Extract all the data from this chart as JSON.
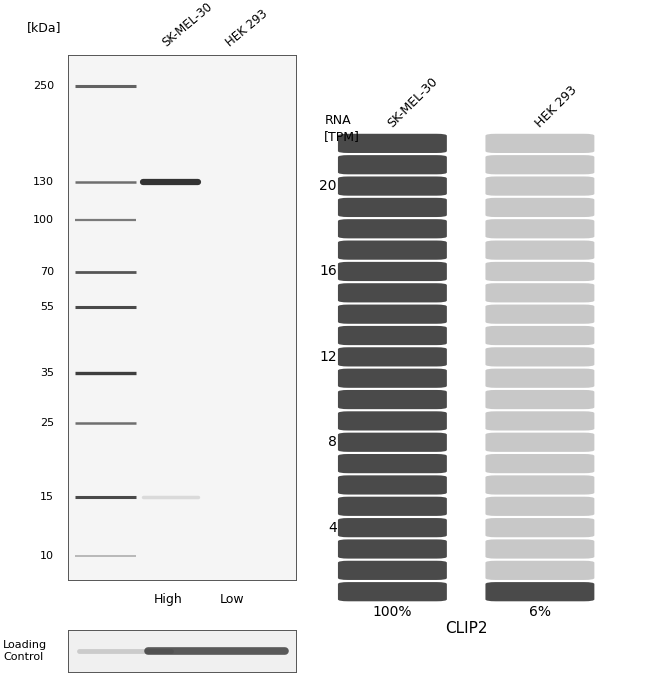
{
  "fig_width": 6.5,
  "fig_height": 6.91,
  "bg_color": "#ffffff",
  "wb_title_left": "[kDa]",
  "wb_lane_labels": [
    "High",
    "Low"
  ],
  "wb_ladder_kda": [
    250,
    130,
    100,
    70,
    55,
    35,
    25,
    15,
    10
  ],
  "wb_cell_lines": [
    "SK-MEL-30",
    "HEK 293"
  ],
  "wb_band_kda": 130,
  "wb_faint_kda": 15,
  "wb_loading_label": "Loading\nControl",
  "rna_title_line1": "RNA",
  "rna_title_line2": "[TPM]",
  "rna_col1_label": "SK-MEL-30",
  "rna_col2_label": "HEK 293",
  "rna_col1_pct": "100%",
  "rna_col2_pct": "6%",
  "rna_gene": "CLIP2",
  "rna_yticks": [
    4,
    8,
    12,
    16,
    20
  ],
  "rna_num_bars": 22,
  "rna_col1_color": "#4a4a4a",
  "rna_col2_color_light": "#c8c8c8",
  "rna_col2_color_dark": "#4a4a4a",
  "gel_bg": "#ececec",
  "gel_bg_inner": "#f5f5f5"
}
